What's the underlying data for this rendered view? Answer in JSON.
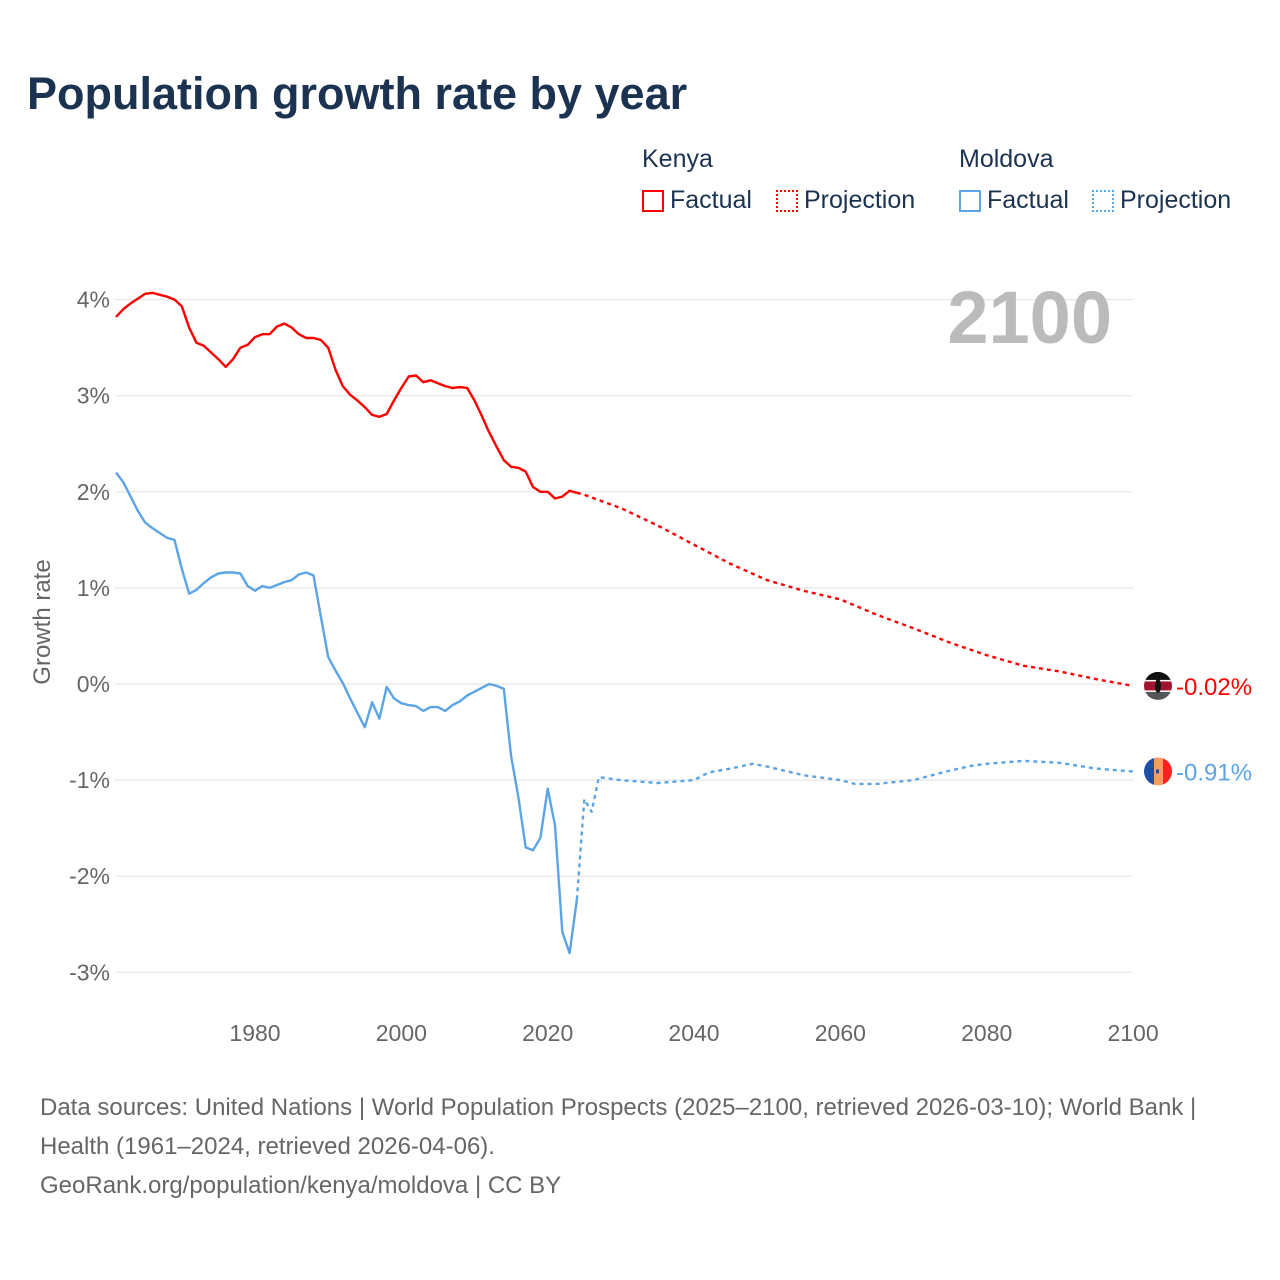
{
  "title": "Population growth rate by year",
  "legend": {
    "groups": [
      {
        "country": "Kenya",
        "factual": "Factual",
        "projection": "Projection",
        "color": "#ff0000"
      },
      {
        "country": "Moldova",
        "factual": "Factual",
        "projection": "Projection",
        "color": "#5ba4e6"
      }
    ]
  },
  "year_display": "2100",
  "footer": {
    "sources": "Data sources: United Nations | World Population Prospects (2025–2100, retrieved 2026-03-10); World Bank | Health (1961–2024, retrieved 2026-04-06).",
    "credit": "GeoRank.org/population/kenya/moldova | CC BY"
  },
  "chart_data": {
    "type": "line",
    "ylabel": "Growth rate",
    "xlabel": "",
    "xlim": [
      1961,
      2100
    ],
    "ylim": [
      -3,
      4
    ],
    "x_ticks": [
      "1980",
      "2000",
      "2020",
      "2040",
      "2060",
      "2080",
      "2100"
    ],
    "x_tick_values": [
      1980,
      2000,
      2020,
      2040,
      2060,
      2080,
      2100
    ],
    "y_ticks": [
      "-3%",
      "-2%",
      "-1%",
      "0%",
      "1%",
      "2%",
      "3%",
      "4%"
    ],
    "y_tick_values": [
      -3,
      -2,
      -1,
      0,
      1,
      2,
      3,
      4
    ],
    "grid": true,
    "series": [
      {
        "name": "Kenya Factual",
        "country": "Kenya",
        "kind": "factual",
        "color": "#ff0000",
        "x": [
          1961,
          1962,
          1963,
          1964,
          1965,
          1966,
          1967,
          1968,
          1969,
          1970,
          1971,
          1972,
          1973,
          1974,
          1975,
          1976,
          1977,
          1978,
          1979,
          1980,
          1981,
          1982,
          1983,
          1984,
          1985,
          1986,
          1987,
          1988,
          1989,
          1990,
          1991,
          1992,
          1993,
          1994,
          1995,
          1996,
          1997,
          1998,
          1999,
          2000,
          2001,
          2002,
          2003,
          2004,
          2005,
          2006,
          2007,
          2008,
          2009,
          2010,
          2011,
          2012,
          2013,
          2014,
          2015,
          2016,
          2017,
          2018,
          2019,
          2020,
          2021,
          2022,
          2023,
          2024
        ],
        "y": [
          3.82,
          3.9,
          3.96,
          4.01,
          4.06,
          4.07,
          4.05,
          4.03,
          4.0,
          3.93,
          3.71,
          3.55,
          3.52,
          3.45,
          3.38,
          3.3,
          3.38,
          3.5,
          3.53,
          3.61,
          3.64,
          3.64,
          3.72,
          3.75,
          3.71,
          3.64,
          3.6,
          3.6,
          3.58,
          3.5,
          3.27,
          3.1,
          3.01,
          2.95,
          2.88,
          2.8,
          2.78,
          2.81,
          2.95,
          3.08,
          3.2,
          3.21,
          3.14,
          3.16,
          3.13,
          3.1,
          3.08,
          3.09,
          3.08,
          2.95,
          2.79,
          2.62,
          2.47,
          2.33,
          2.26,
          2.25,
          2.21,
          2.05,
          2.0,
          2.0,
          1.93,
          1.95,
          2.01,
          1.99
        ]
      },
      {
        "name": "Kenya Projection",
        "country": "Kenya",
        "kind": "projection",
        "color": "#ff0000",
        "x": [
          2024,
          2025,
          2030,
          2035,
          2040,
          2045,
          2050,
          2055,
          2060,
          2065,
          2070,
          2075,
          2080,
          2085,
          2090,
          2095,
          2100
        ],
        "y": [
          1.99,
          1.97,
          1.83,
          1.65,
          1.45,
          1.25,
          1.08,
          0.97,
          0.88,
          0.72,
          0.58,
          0.43,
          0.3,
          0.19,
          0.13,
          0.05,
          -0.02
        ]
      },
      {
        "name": "Moldova Factual",
        "country": "Moldova",
        "kind": "factual",
        "color": "#5ba4e6",
        "x": [
          1961,
          1962,
          1963,
          1964,
          1965,
          1966,
          1967,
          1968,
          1969,
          1970,
          1971,
          1972,
          1973,
          1974,
          1975,
          1976,
          1977,
          1978,
          1979,
          1980,
          1981,
          1982,
          1983,
          1984,
          1985,
          1986,
          1987,
          1988,
          1989,
          1990,
          1991,
          1992,
          1993,
          1994,
          1995,
          1996,
          1997,
          1998,
          1999,
          2000,
          2001,
          2002,
          2003,
          2004,
          2005,
          2006,
          2007,
          2008,
          2009,
          2010,
          2011,
          2012,
          2013,
          2014,
          2015,
          2016,
          2017,
          2018,
          2019,
          2020,
          2021,
          2022,
          2023,
          2024
        ],
        "y": [
          2.2,
          2.1,
          1.95,
          1.8,
          1.68,
          1.62,
          1.57,
          1.52,
          1.5,
          1.2,
          0.94,
          0.98,
          1.05,
          1.11,
          1.15,
          1.16,
          1.16,
          1.15,
          1.02,
          0.97,
          1.02,
          1.0,
          1.03,
          1.06,
          1.08,
          1.14,
          1.16,
          1.13,
          0.7,
          0.28,
          0.14,
          0.01,
          -0.15,
          -0.3,
          -0.45,
          -0.19,
          -0.36,
          -0.03,
          -0.15,
          -0.2,
          -0.22,
          -0.23,
          -0.28,
          -0.24,
          -0.24,
          -0.28,
          -0.22,
          -0.18,
          -0.12,
          -0.08,
          -0.04,
          0.0,
          -0.02,
          -0.05,
          -0.75,
          -1.18,
          -1.7,
          -1.73,
          -1.6,
          -1.09,
          -1.47,
          -2.58,
          -2.8,
          -2.24
        ]
      },
      {
        "name": "Moldova Projection",
        "country": "Moldova",
        "kind": "projection",
        "color": "#5ba4e6",
        "x": [
          2024,
          2025,
          2026,
          2027,
          2030,
          2035,
          2040,
          2042,
          2045,
          2048,
          2050,
          2055,
          2060,
          2062,
          2065,
          2070,
          2075,
          2078,
          2080,
          2085,
          2090,
          2095,
          2100
        ],
        "y": [
          -2.24,
          -1.2,
          -1.33,
          -0.97,
          -1.0,
          -1.03,
          -1.0,
          -0.92,
          -0.88,
          -0.83,
          -0.86,
          -0.95,
          -1.0,
          -1.04,
          -1.04,
          -1.0,
          -0.9,
          -0.85,
          -0.83,
          -0.8,
          -0.82,
          -0.88,
          -0.91
        ]
      }
    ],
    "end_labels": [
      {
        "country": "Kenya",
        "label": "-0.02%",
        "value": -0.02,
        "color": "#ff0000"
      },
      {
        "country": "Moldova",
        "label": "-0.91%",
        "value": -0.91,
        "color": "#5ba4e6"
      }
    ]
  }
}
